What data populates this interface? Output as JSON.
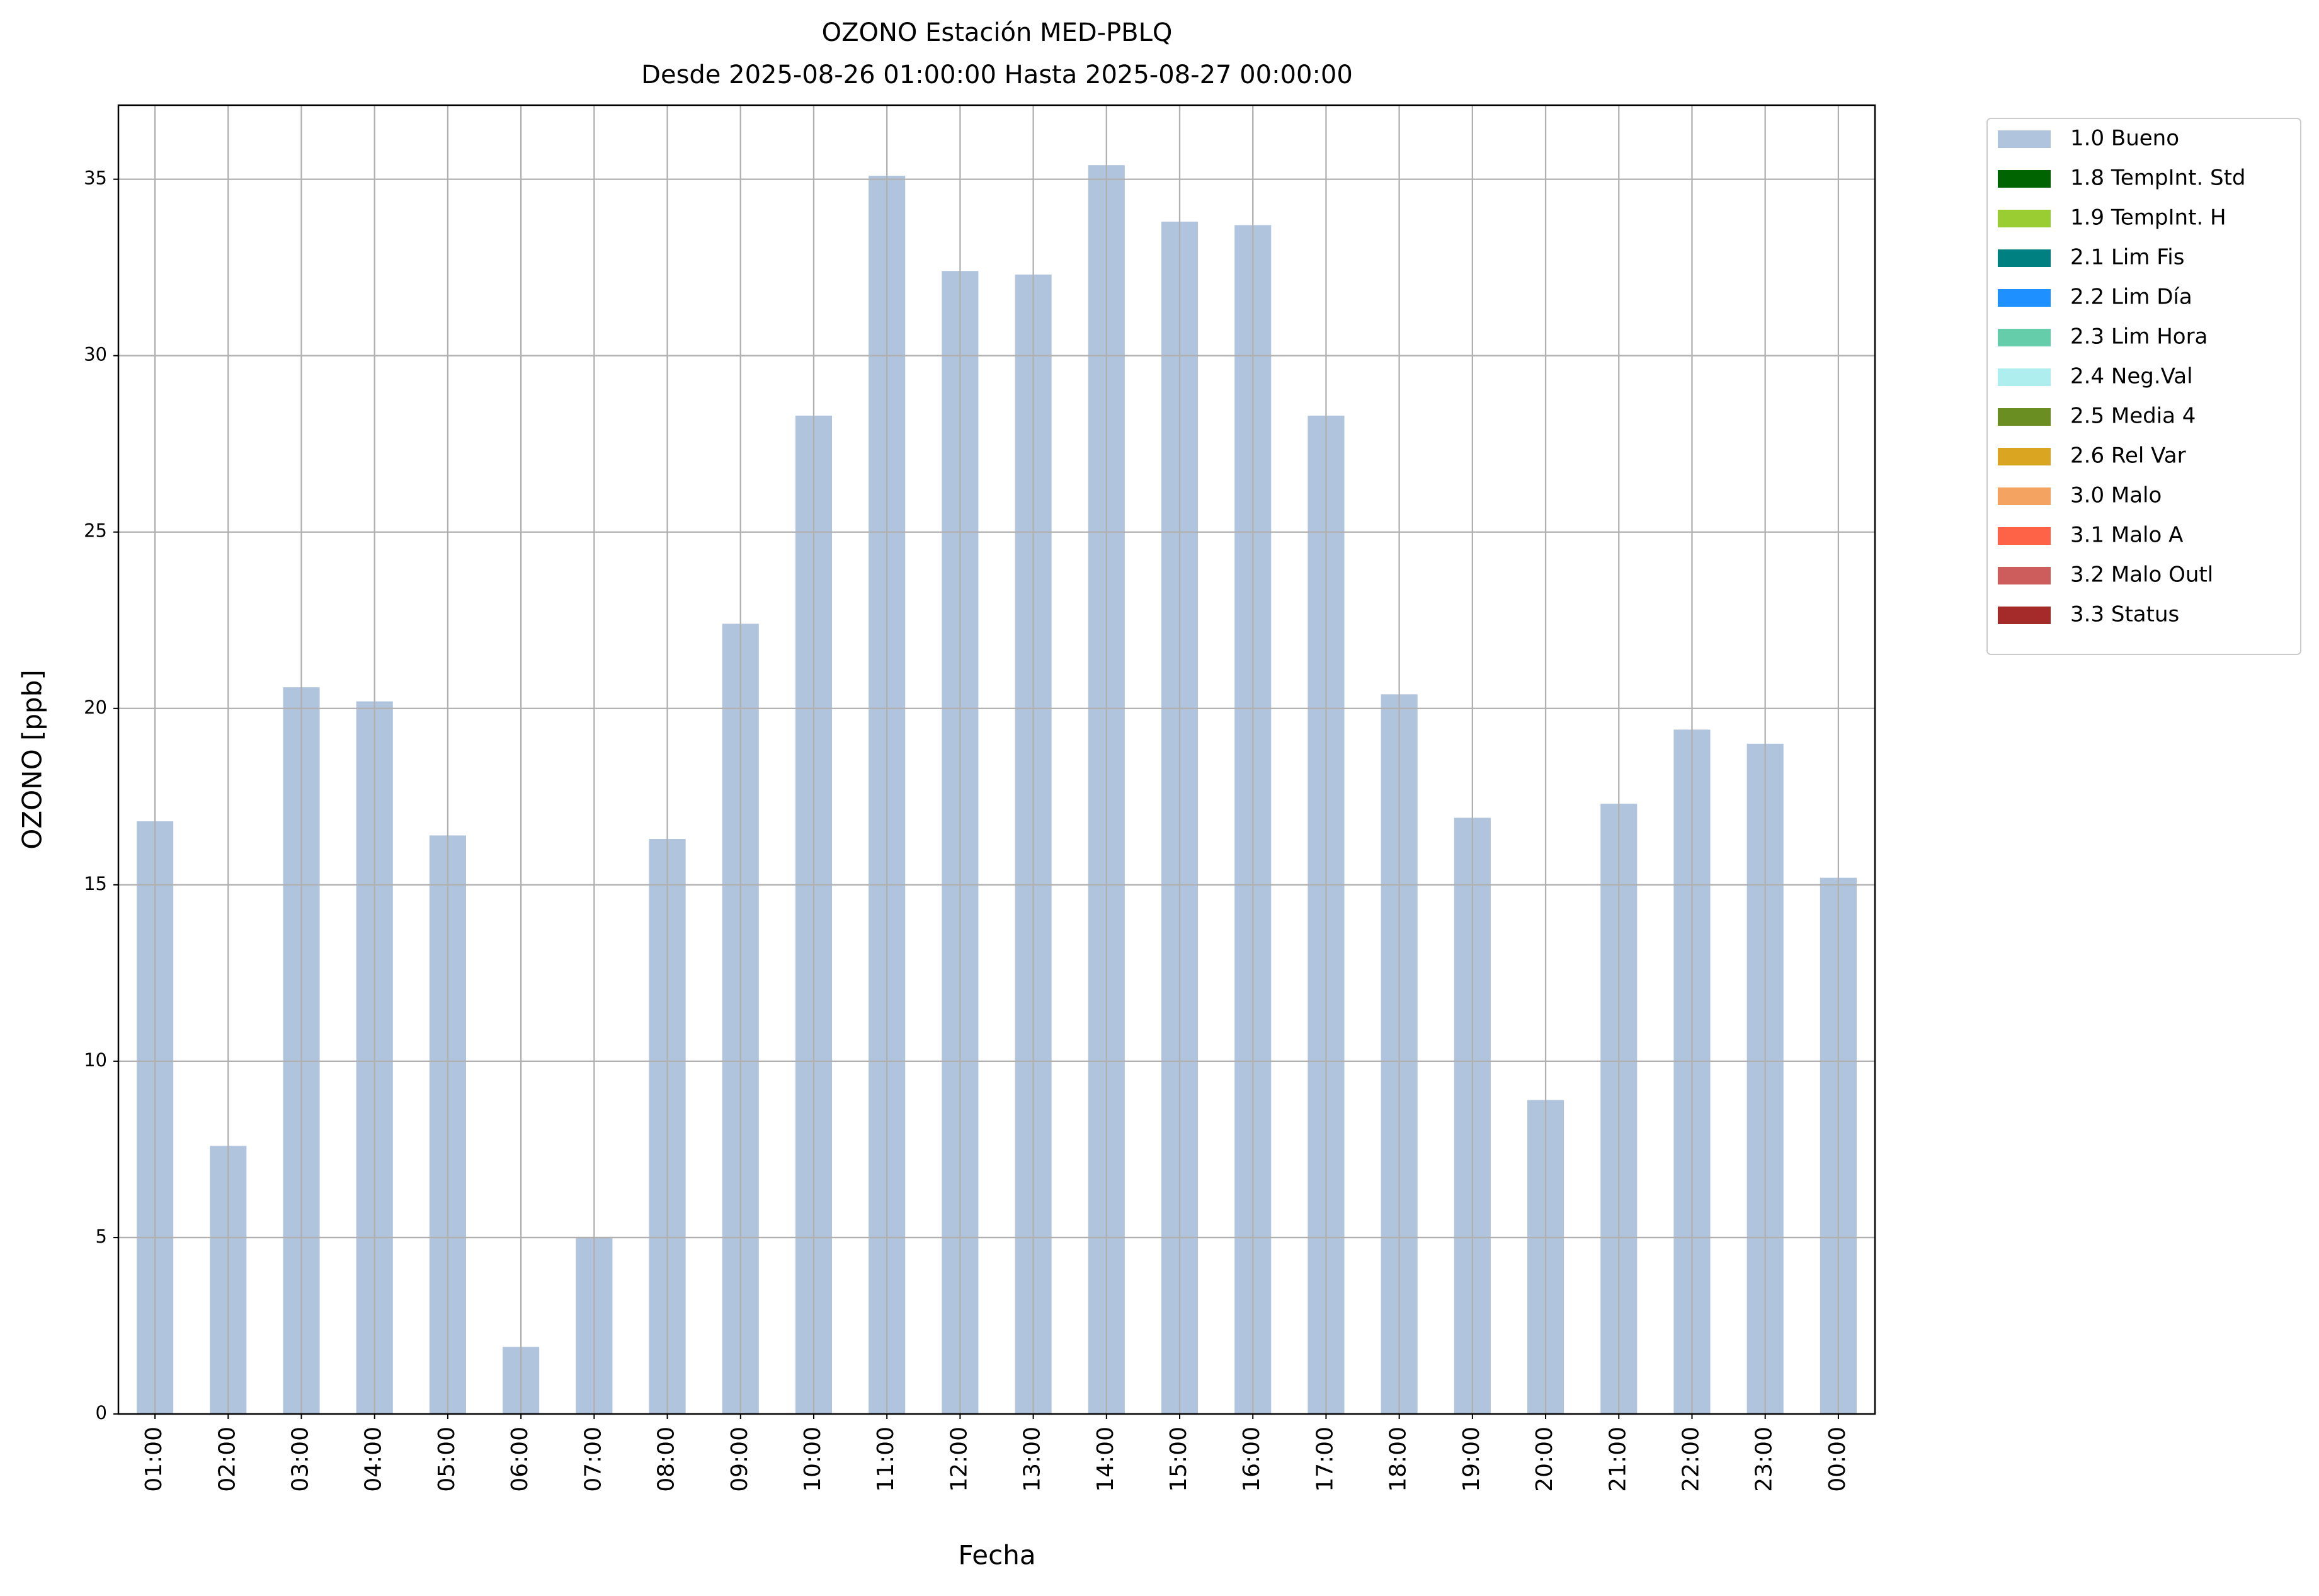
{
  "chart_data": {
    "type": "bar",
    "title": "OZONO Estación MED-PBLQ",
    "subtitle": "Desde 2025-08-26 01:00:00 Hasta 2025-08-27 00:00:00",
    "x_label": "Fecha",
    "y_label": "OZONO [ppb]",
    "categories": [
      "01:00",
      "02:00",
      "03:00",
      "04:00",
      "05:00",
      "06:00",
      "07:00",
      "08:00",
      "09:00",
      "10:00",
      "11:00",
      "12:00",
      "13:00",
      "14:00",
      "15:00",
      "16:00",
      "17:00",
      "18:00",
      "19:00",
      "20:00",
      "21:00",
      "22:00",
      "23:00",
      "00:00"
    ],
    "series": [
      {
        "name": "1.0 Bueno",
        "color": "#b0c4de",
        "values": [
          16.8,
          7.6,
          20.6,
          20.2,
          16.4,
          1.9,
          5.0,
          16.3,
          22.4,
          28.3,
          35.1,
          32.4,
          32.3,
          35.4,
          33.8,
          33.7,
          28.3,
          20.4,
          16.9,
          8.9,
          17.3,
          19.4,
          19.0,
          15.2
        ]
      }
    ],
    "legend_only": [
      {
        "name": "1.8 TempInt. Std",
        "color": "#006400"
      },
      {
        "name": "1.9 TempInt. H",
        "color": "#9acd32"
      },
      {
        "name": "2.1 Lim Fis",
        "color": "#008080"
      },
      {
        "name": "2.2 Lim Día",
        "color": "#1e90ff"
      },
      {
        "name": "2.3 Lim Hora",
        "color": "#66cdaa"
      },
      {
        "name": "2.4 Neg.Val",
        "color": "#afeeee"
      },
      {
        "name": "2.5 Media 4",
        "color": "#6b8e23"
      },
      {
        "name": "2.6 Rel Var",
        "color": "#daa520"
      },
      {
        "name": "3.0 Malo",
        "color": "#f4a460"
      },
      {
        "name": "3.1 Malo A",
        "color": "#ff6347"
      },
      {
        "name": "3.2 Malo Outl",
        "color": "#cd5c5c"
      },
      {
        "name": "3.3 Status",
        "color": "#a52a2a"
      }
    ],
    "ylim": [
      0,
      37.1
    ],
    "yticks": [
      0,
      5,
      10,
      15,
      20,
      25,
      30,
      35
    ],
    "grid": true,
    "legend_position": "outside-upper-right"
  }
}
